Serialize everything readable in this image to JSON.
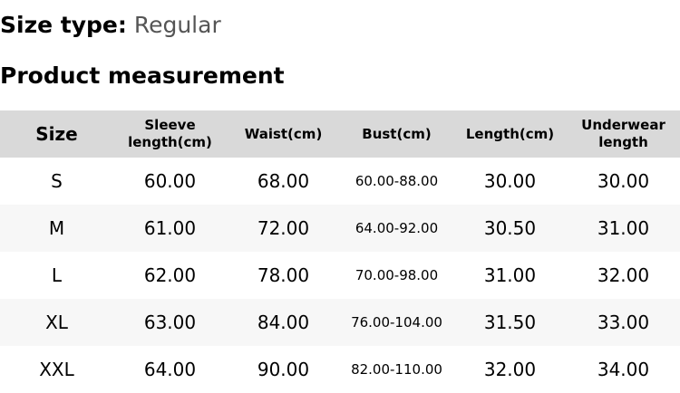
{
  "size_type": {
    "label": "Size type:",
    "value": "Regular"
  },
  "title": "Product measurement",
  "table": {
    "headers": [
      "Size",
      "Sleeve length(cm)",
      "Waist(cm)",
      "Bust(cm)",
      "Length(cm)",
      "Underwear length"
    ],
    "rows": [
      [
        "S",
        "60.00",
        "68.00",
        "60.00-88.00",
        "30.00",
        "30.00"
      ],
      [
        "M",
        "61.00",
        "72.00",
        "64.00-92.00",
        "30.50",
        "31.00"
      ],
      [
        "L",
        "62.00",
        "78.00",
        "70.00-98.00",
        "31.00",
        "32.00"
      ],
      [
        "XL",
        "63.00",
        "84.00",
        "76.00-104.00",
        "31.50",
        "33.00"
      ],
      [
        "XXL",
        "64.00",
        "90.00",
        "82.00-110.00",
        "32.00",
        "34.00"
      ]
    ]
  }
}
